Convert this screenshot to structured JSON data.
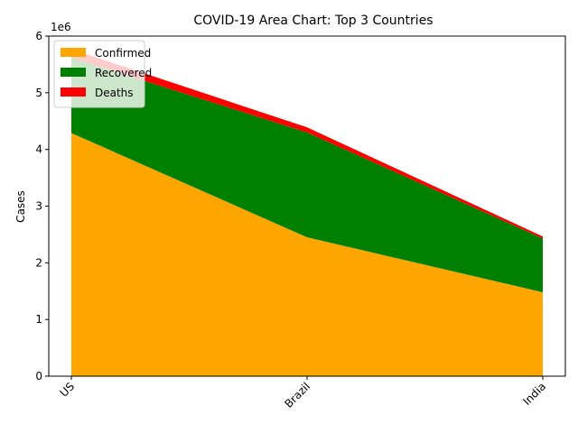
{
  "chart_data": {
    "type": "area",
    "stacked": true,
    "title": "COVID-19 Area Chart: Top 3 Countries",
    "xlabel": "",
    "ylabel": "Cases",
    "offset_text": "1e6",
    "categories": [
      "US",
      "Brazil",
      "India"
    ],
    "series": [
      {
        "name": "Confirmed",
        "color": "#ffa500",
        "values": [
          4290000,
          2450000,
          1480000
        ]
      },
      {
        "name": "Recovered",
        "color": "#008000",
        "values": [
          1330000,
          1850000,
          950000
        ]
      },
      {
        "name": "Deaths",
        "color": "#ff0000",
        "values": [
          150000,
          90000,
          35000
        ]
      }
    ],
    "ylim": [
      0,
      6000000
    ],
    "yticks": [
      0,
      1000000,
      2000000,
      3000000,
      4000000,
      5000000,
      6000000
    ],
    "ytick_labels": [
      "0",
      "1",
      "2",
      "3",
      "4",
      "5",
      "6"
    ],
    "xtick_rotation": 45,
    "grid": false,
    "legend_position": "top-left"
  }
}
